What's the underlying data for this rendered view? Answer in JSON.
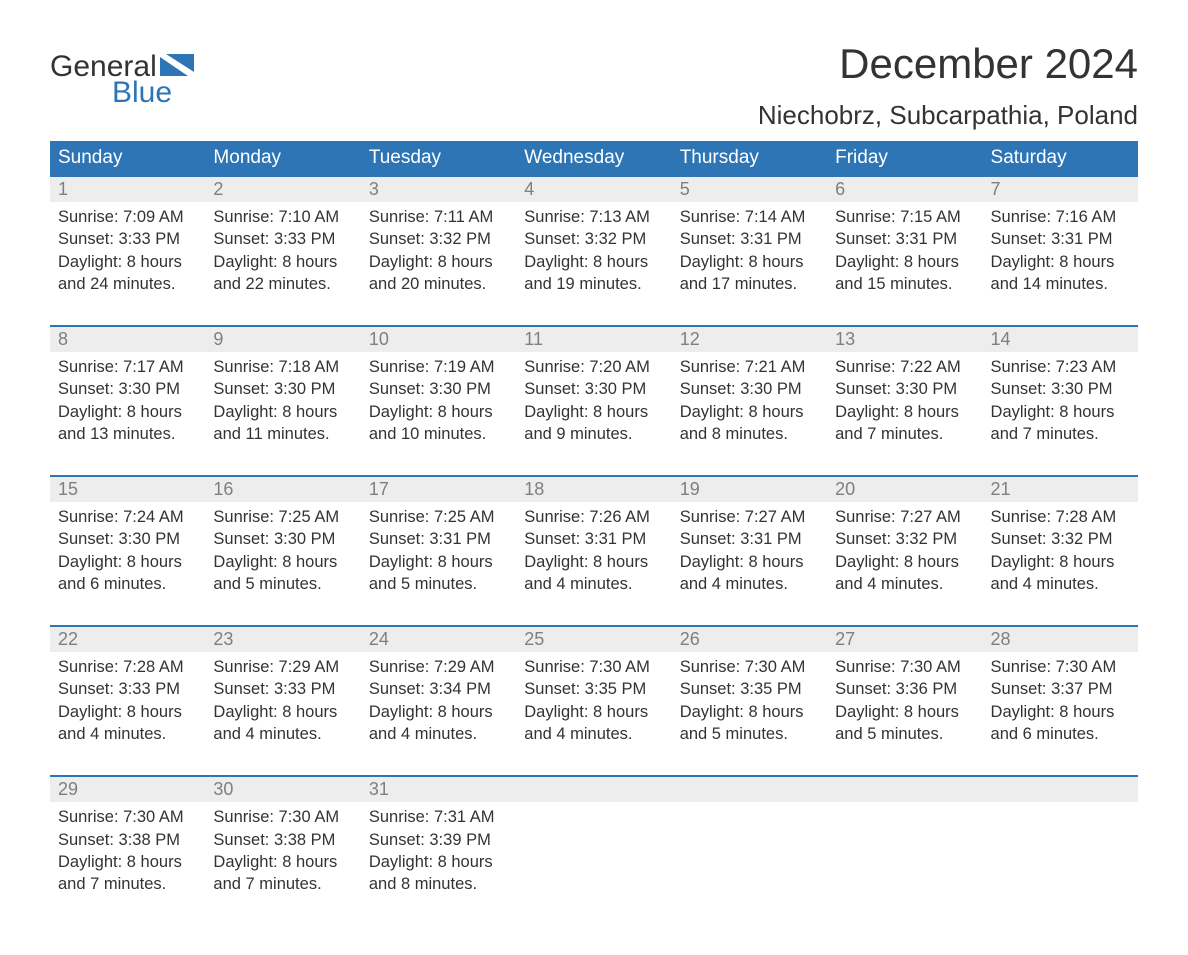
{
  "logo": {
    "word1": "General",
    "word2": "Blue"
  },
  "title": "December 2024",
  "location": "Niechobrz, Subcarpathia, Poland",
  "colors": {
    "header_bg": "#2e75b6",
    "header_text": "#ffffff",
    "daynum_bg": "#ededed",
    "daynum_text": "#7f7f7f",
    "body_text": "#333333",
    "accent": "#2e75b6",
    "page_bg": "#ffffff"
  },
  "dayNames": [
    "Sunday",
    "Monday",
    "Tuesday",
    "Wednesday",
    "Thursday",
    "Friday",
    "Saturday"
  ],
  "weeks": [
    [
      {
        "n": "1",
        "sr": "7:09 AM",
        "ss": "3:33 PM",
        "dl": "8 hours and 24 minutes."
      },
      {
        "n": "2",
        "sr": "7:10 AM",
        "ss": "3:33 PM",
        "dl": "8 hours and 22 minutes."
      },
      {
        "n": "3",
        "sr": "7:11 AM",
        "ss": "3:32 PM",
        "dl": "8 hours and 20 minutes."
      },
      {
        "n": "4",
        "sr": "7:13 AM",
        "ss": "3:32 PM",
        "dl": "8 hours and 19 minutes."
      },
      {
        "n": "5",
        "sr": "7:14 AM",
        "ss": "3:31 PM",
        "dl": "8 hours and 17 minutes."
      },
      {
        "n": "6",
        "sr": "7:15 AM",
        "ss": "3:31 PM",
        "dl": "8 hours and 15 minutes."
      },
      {
        "n": "7",
        "sr": "7:16 AM",
        "ss": "3:31 PM",
        "dl": "8 hours and 14 minutes."
      }
    ],
    [
      {
        "n": "8",
        "sr": "7:17 AM",
        "ss": "3:30 PM",
        "dl": "8 hours and 13 minutes."
      },
      {
        "n": "9",
        "sr": "7:18 AM",
        "ss": "3:30 PM",
        "dl": "8 hours and 11 minutes."
      },
      {
        "n": "10",
        "sr": "7:19 AM",
        "ss": "3:30 PM",
        "dl": "8 hours and 10 minutes."
      },
      {
        "n": "11",
        "sr": "7:20 AM",
        "ss": "3:30 PM",
        "dl": "8 hours and 9 minutes."
      },
      {
        "n": "12",
        "sr": "7:21 AM",
        "ss": "3:30 PM",
        "dl": "8 hours and 8 minutes."
      },
      {
        "n": "13",
        "sr": "7:22 AM",
        "ss": "3:30 PM",
        "dl": "8 hours and 7 minutes."
      },
      {
        "n": "14",
        "sr": "7:23 AM",
        "ss": "3:30 PM",
        "dl": "8 hours and 7 minutes."
      }
    ],
    [
      {
        "n": "15",
        "sr": "7:24 AM",
        "ss": "3:30 PM",
        "dl": "8 hours and 6 minutes."
      },
      {
        "n": "16",
        "sr": "7:25 AM",
        "ss": "3:30 PM",
        "dl": "8 hours and 5 minutes."
      },
      {
        "n": "17",
        "sr": "7:25 AM",
        "ss": "3:31 PM",
        "dl": "8 hours and 5 minutes."
      },
      {
        "n": "18",
        "sr": "7:26 AM",
        "ss": "3:31 PM",
        "dl": "8 hours and 4 minutes."
      },
      {
        "n": "19",
        "sr": "7:27 AM",
        "ss": "3:31 PM",
        "dl": "8 hours and 4 minutes."
      },
      {
        "n": "20",
        "sr": "7:27 AM",
        "ss": "3:32 PM",
        "dl": "8 hours and 4 minutes."
      },
      {
        "n": "21",
        "sr": "7:28 AM",
        "ss": "3:32 PM",
        "dl": "8 hours and 4 minutes."
      }
    ],
    [
      {
        "n": "22",
        "sr": "7:28 AM",
        "ss": "3:33 PM",
        "dl": "8 hours and 4 minutes."
      },
      {
        "n": "23",
        "sr": "7:29 AM",
        "ss": "3:33 PM",
        "dl": "8 hours and 4 minutes."
      },
      {
        "n": "24",
        "sr": "7:29 AM",
        "ss": "3:34 PM",
        "dl": "8 hours and 4 minutes."
      },
      {
        "n": "25",
        "sr": "7:30 AM",
        "ss": "3:35 PM",
        "dl": "8 hours and 4 minutes."
      },
      {
        "n": "26",
        "sr": "7:30 AM",
        "ss": "3:35 PM",
        "dl": "8 hours and 5 minutes."
      },
      {
        "n": "27",
        "sr": "7:30 AM",
        "ss": "3:36 PM",
        "dl": "8 hours and 5 minutes."
      },
      {
        "n": "28",
        "sr": "7:30 AM",
        "ss": "3:37 PM",
        "dl": "8 hours and 6 minutes."
      }
    ],
    [
      {
        "n": "29",
        "sr": "7:30 AM",
        "ss": "3:38 PM",
        "dl": "8 hours and 7 minutes."
      },
      {
        "n": "30",
        "sr": "7:30 AM",
        "ss": "3:38 PM",
        "dl": "8 hours and 7 minutes."
      },
      {
        "n": "31",
        "sr": "7:31 AM",
        "ss": "3:39 PM",
        "dl": "8 hours and 8 minutes."
      },
      null,
      null,
      null,
      null
    ]
  ],
  "labels": {
    "sunrise": "Sunrise: ",
    "sunset": "Sunset: ",
    "daylight": "Daylight: "
  }
}
